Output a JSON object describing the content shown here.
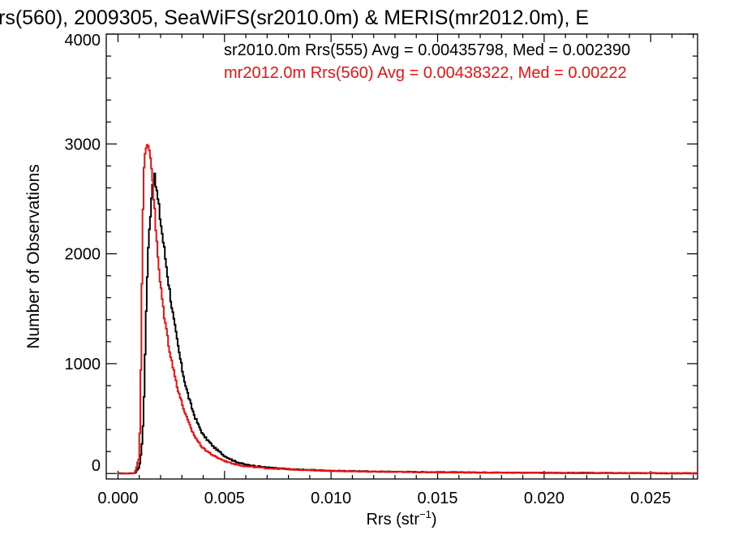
{
  "chart_data": {
    "type": "line",
    "title": "rs(560), 2009305, SeaWiFS(sr2010.0m) & MERIS(mr2012.0m), E",
    "xlabel_base": "Rrs (str",
    "xlabel_sup": "−1",
    "xlabel_close": ")",
    "ylabel": "Number of Observations",
    "xlim": [
      -0.00055,
      0.0272
    ],
    "ylim": [
      -50,
      4000
    ],
    "xticks": [
      0.0,
      0.005,
      0.01,
      0.015,
      0.02,
      0.025
    ],
    "xtick_labels": [
      "0.000",
      "0.005",
      "0.010",
      "0.015",
      "0.020",
      "0.025"
    ],
    "yticks": [
      0,
      1000,
      2000,
      3000,
      4000
    ],
    "ytick_labels": [
      "0",
      "1000",
      "2000",
      "3000",
      "4000"
    ],
    "grid": false,
    "series": [
      {
        "name": "sr2010.0m Rrs(555) Avg = 0.00435798, Med = 0.002390",
        "color": "#000000",
        "x": [
          0.0,
          0.0005,
          0.0008,
          0.001,
          0.0011,
          0.0012,
          0.00125,
          0.0013,
          0.00135,
          0.0014,
          0.0015,
          0.0016,
          0.0017,
          0.0018,
          0.0019,
          0.002,
          0.0022,
          0.0024,
          0.0026,
          0.0028,
          0.003,
          0.0032,
          0.0034,
          0.0036,
          0.0038,
          0.004,
          0.0045,
          0.005,
          0.0055,
          0.006,
          0.007,
          0.008,
          0.009,
          0.01,
          0.012,
          0.015,
          0.018,
          0.02,
          0.022,
          0.025,
          0.027
        ],
        "values": [
          0,
          0,
          5,
          60,
          200,
          500,
          900,
          1300,
          1650,
          1950,
          2300,
          2620,
          2700,
          2600,
          2450,
          2300,
          2000,
          1700,
          1420,
          1180,
          960,
          780,
          640,
          520,
          430,
          350,
          240,
          160,
          110,
          80,
          55,
          40,
          32,
          25,
          18,
          12,
          8,
          6,
          5,
          3,
          2
        ]
      },
      {
        "name": "mr2012.0m Rrs(560) Avg = 0.00438322, Med = 0.00222",
        "color": "#ee1111",
        "x": [
          0.0,
          0.0005,
          0.0008,
          0.001,
          0.00105,
          0.0011,
          0.00115,
          0.0012,
          0.0013,
          0.0014,
          0.0015,
          0.0016,
          0.0017,
          0.0018,
          0.0019,
          0.002,
          0.0022,
          0.0024,
          0.0026,
          0.0028,
          0.003,
          0.0032,
          0.0034,
          0.0036,
          0.0038,
          0.004,
          0.0045,
          0.005,
          0.0055,
          0.006,
          0.007,
          0.008,
          0.009,
          0.01,
          0.012,
          0.015,
          0.018,
          0.02,
          0.022,
          0.025,
          0.027
        ],
        "values": [
          0,
          0,
          5,
          150,
          600,
          1300,
          2200,
          2700,
          2920,
          3000,
          2950,
          2750,
          2450,
          2150,
          1900,
          1700,
          1400,
          1150,
          950,
          780,
          640,
          520,
          420,
          340,
          280,
          230,
          160,
          115,
          85,
          65,
          48,
          38,
          30,
          24,
          17,
          11,
          8,
          6,
          4,
          3,
          2
        ]
      }
    ]
  }
}
